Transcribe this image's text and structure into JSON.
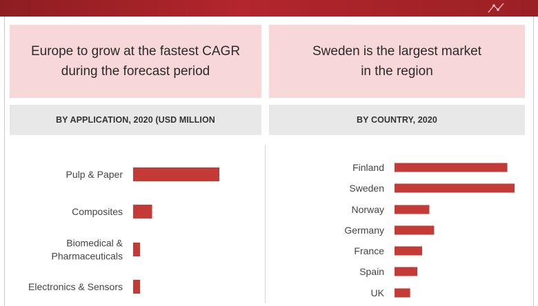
{
  "panels": {
    "left": {
      "headline": [
        "Europe to grow at the fastest CAGR",
        "during the forecast period"
      ],
      "subtitle": "BY APPLICATION, 2020 (USD MILLION"
    },
    "right": {
      "headline": [
        "Sweden is the largest market",
        "in the region"
      ],
      "subtitle": "BY COUNTRY, 2020"
    }
  },
  "colors": {
    "bar": "#c43a36",
    "banner": "#a82329",
    "headline_bg": "#f7d7d7",
    "subbar_bg": "#e8e8e8"
  },
  "chart_data": [
    {
      "type": "bar",
      "orientation": "horizontal",
      "categories": [
        [
          "Pulp & Paper"
        ],
        [
          "Composites"
        ],
        [
          "Biomedical &",
          "Pharmaceuticals"
        ],
        [
          "Electronics & Sensors"
        ]
      ],
      "values": [
        100,
        22,
        8,
        8
      ],
      "xlim": [
        0,
        100
      ]
    },
    {
      "type": "bar",
      "orientation": "horizontal",
      "categories": [
        "Finland",
        "Sweden",
        "Norway",
        "Germany",
        "France",
        "Spain",
        "UK"
      ],
      "values": [
        94,
        100,
        29,
        33,
        23,
        19,
        13
      ],
      "xlim": [
        0,
        100
      ]
    }
  ]
}
